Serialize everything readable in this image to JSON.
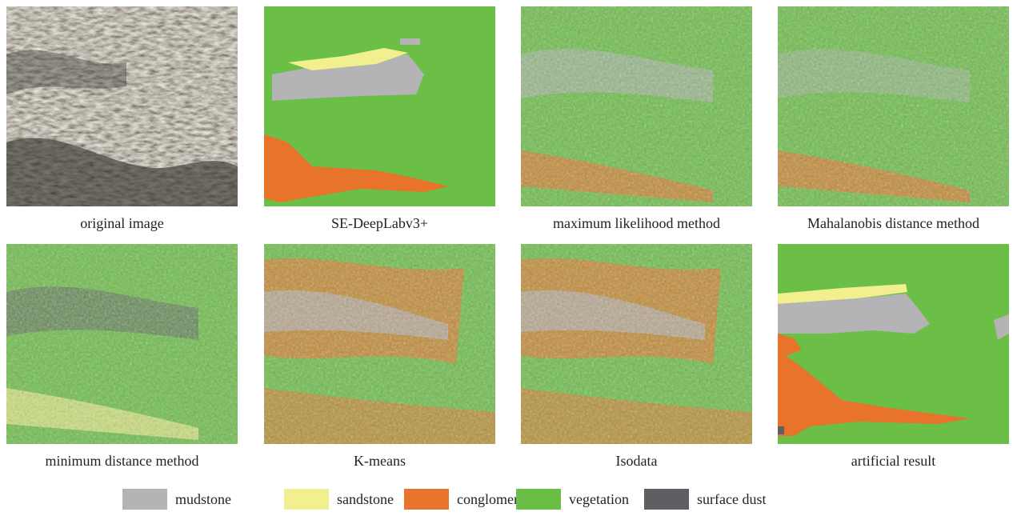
{
  "panels": [
    {
      "caption": "original image"
    },
    {
      "caption": "SE-DeepLabv3+"
    },
    {
      "caption": "maximum likelihood method"
    },
    {
      "caption": "Mahalanobis distance method"
    },
    {
      "caption": "minimum distance method"
    },
    {
      "caption": "K-means"
    },
    {
      "caption": "Isodata"
    },
    {
      "caption": "artificial result"
    }
  ],
  "legend": [
    {
      "label": "mudstone",
      "color": "#b4b4b6"
    },
    {
      "label": "sandstone",
      "color": "#f2ef8e"
    },
    {
      "label": "conglomerate",
      "color": "#e8732a"
    },
    {
      "label": "vegetation",
      "color": "#6bbf46"
    },
    {
      "label": "surface dust",
      "color": "#5f5f63"
    }
  ]
}
